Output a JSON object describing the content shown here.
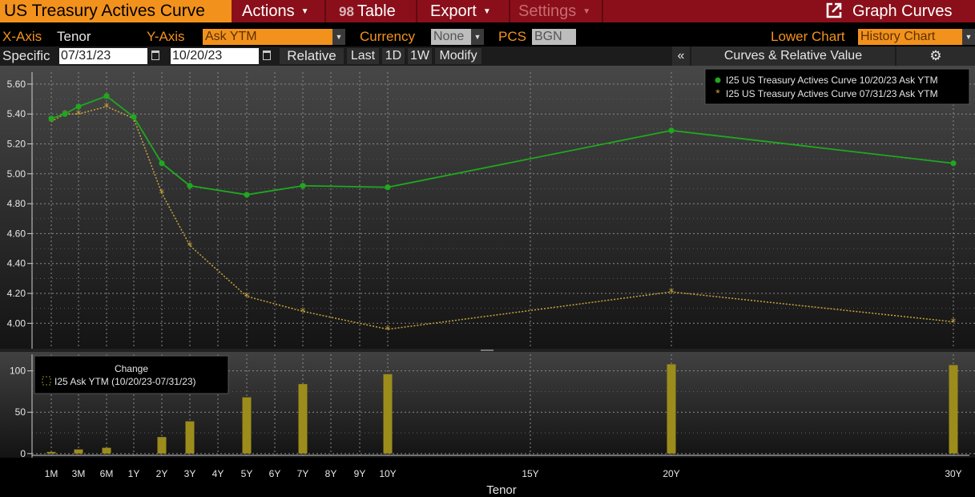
{
  "menu": {
    "title": "US Treasury Actives Curve",
    "actions_label": "Actions",
    "table_label": "Table",
    "table_icon_text": "98",
    "export_label": "Export",
    "settings_label": "Settings",
    "graph_curves_label": "Graph Curves"
  },
  "options": {
    "xaxis_label": "X-Axis",
    "xaxis_value": "Tenor",
    "yaxis_label": "Y-Axis",
    "yaxis_value": "Ask YTM",
    "currency_label": "Currency",
    "currency_value": "None",
    "pcs_label": "PCS",
    "pcs_value": "BGN",
    "lower_chart_label": "Lower Chart",
    "lower_chart_value": "History Chart"
  },
  "dates": {
    "mode_label": "Specific",
    "date1": "07/31/23",
    "date2": "10/20/23",
    "relative_label": "Relative",
    "last_label": "Last",
    "btn_1d": "1D",
    "btn_1w": "1W",
    "modify_label": "Modify",
    "collapse_label": "«",
    "panel_label": "Curves & Relative Value"
  },
  "colors": {
    "series1": "#1fa81f",
    "series2": "#c9a53a",
    "bars": "#9c8c1c",
    "menu_bar": "#8a0f1a",
    "accent": "#f2921c"
  },
  "chart_data": [
    {
      "type": "line",
      "x": [
        "1M",
        "3M",
        "6M",
        "1Y",
        "2Y",
        "3Y",
        "5Y",
        "7Y",
        "10Y",
        "20Y",
        "30Y"
      ],
      "tick_labels": [
        "1M",
        "3M",
        "6M",
        "1Y",
        "2Y",
        "3Y",
        "4Y",
        "5Y",
        "6Y",
        "7Y",
        "8Y",
        "9Y",
        "10Y",
        "15Y",
        "20Y",
        "30Y"
      ],
      "series": [
        {
          "name": "I25 US Treasury Actives Curve 10/20/23 Ask YTM",
          "points": [
            [
              "1M",
              5.37
            ],
            [
              "2M",
              5.4
            ],
            [
              "3M",
              5.45
            ],
            [
              "6M",
              5.52
            ],
            [
              "1Y",
              5.38
            ],
            [
              "2Y",
              5.07
            ],
            [
              "3Y",
              4.92
            ],
            [
              "5Y",
              4.86
            ],
            [
              "7Y",
              4.92
            ],
            [
              "10Y",
              4.91
            ],
            [
              "20Y",
              5.29
            ],
            [
              "30Y",
              5.07
            ]
          ]
        },
        {
          "name": "I25 US Treasury Actives Curve 07/31/23 Ask YTM",
          "points": [
            [
              "1M",
              5.35
            ],
            [
              "2M",
              5.4
            ],
            [
              "3M",
              5.4
            ],
            [
              "6M",
              5.45
            ],
            [
              "1Y",
              5.37
            ],
            [
              "2Y",
              4.87
            ],
            [
              "3Y",
              4.52
            ],
            [
              "5Y",
              4.18
            ],
            [
              "7Y",
              4.08
            ],
            [
              "10Y",
              3.96
            ],
            [
              "20Y",
              4.21
            ],
            [
              "30Y",
              4.01
            ]
          ]
        }
      ],
      "y_ticks": [
        "4.00",
        "4.20",
        "4.40",
        "4.60",
        "4.80",
        "5.00",
        "5.20",
        "5.40",
        "5.60"
      ],
      "ylim": [
        3.83,
        5.68
      ],
      "grid": true,
      "legend": "top-right"
    },
    {
      "type": "bar",
      "legend_title": "Change",
      "series_name": "I25 Ask YTM (10/20/23-07/31/23)",
      "categories": [
        "1M",
        "3M",
        "6M",
        "2Y",
        "3Y",
        "5Y",
        "7Y",
        "10Y",
        "20Y",
        "30Y"
      ],
      "values": [
        2,
        5,
        7,
        20,
        39,
        68,
        84,
        96,
        108,
        107
      ],
      "y_ticks": [
        "0",
        "50",
        "100"
      ],
      "ylim": [
        -5,
        120
      ],
      "xlabel": "Tenor",
      "grid": true,
      "legend": "top-left"
    }
  ]
}
